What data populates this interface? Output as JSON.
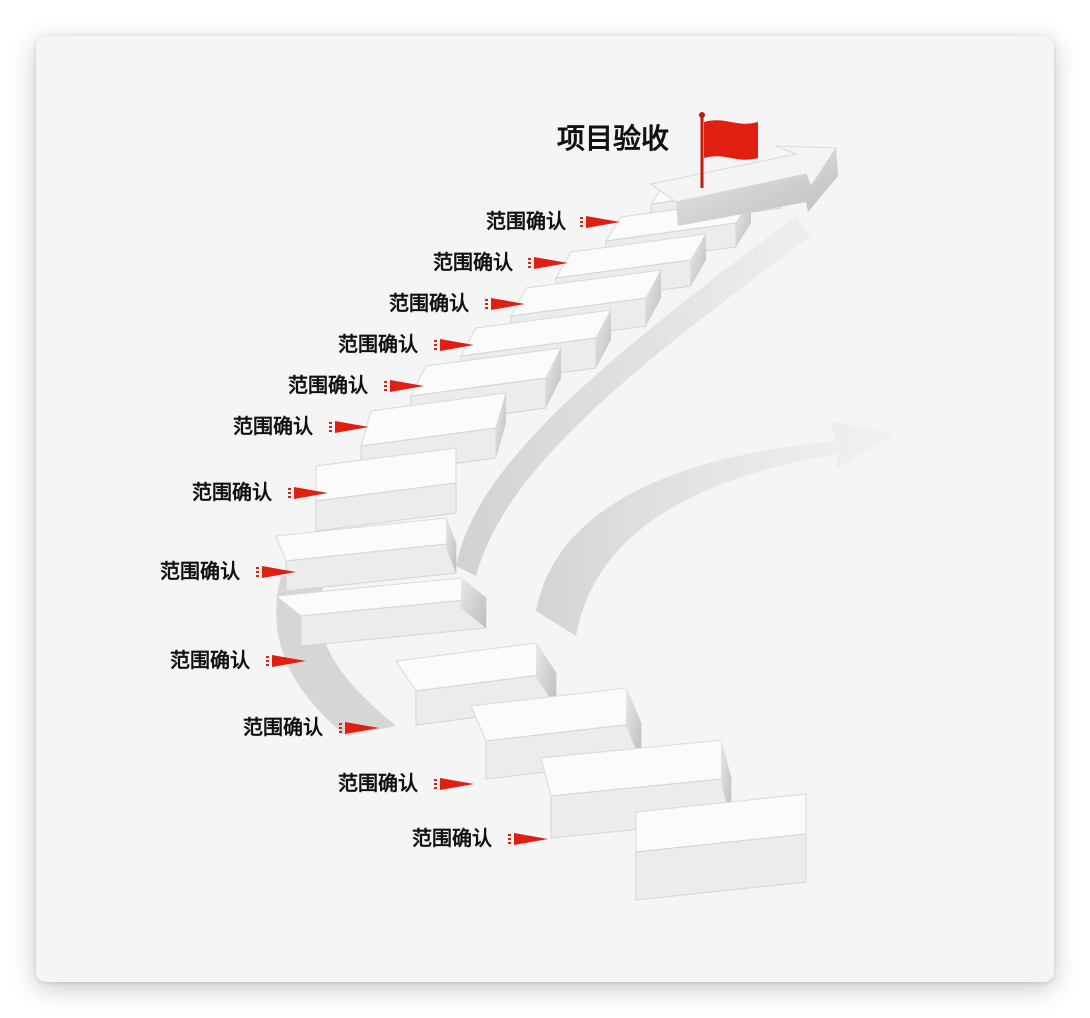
{
  "goal": {
    "label": "项目验收",
    "flag_color": "#e01e12"
  },
  "pointer_color": "#e01e12",
  "steps": [
    {
      "label": "范围确认"
    },
    {
      "label": "范围确认"
    },
    {
      "label": "范围确认"
    },
    {
      "label": "范围确认"
    },
    {
      "label": "范围确认"
    },
    {
      "label": "范围确认"
    },
    {
      "label": "范围确认"
    },
    {
      "label": "范围确认"
    },
    {
      "label": "范围确认"
    },
    {
      "label": "范围确认"
    },
    {
      "label": "范围确认"
    },
    {
      "label": "范围确认"
    }
  ]
}
